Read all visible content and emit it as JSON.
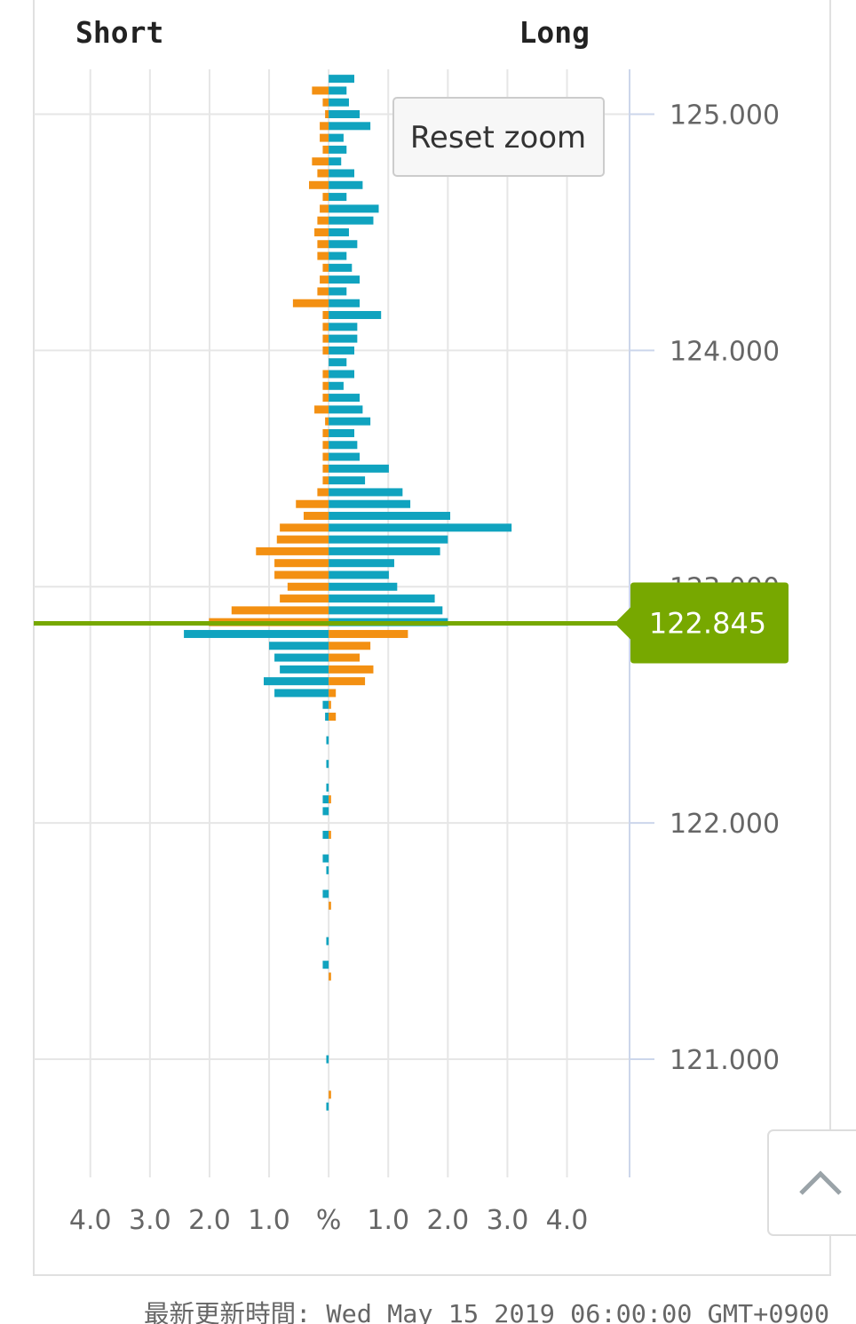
{
  "chart_data": {
    "type": "butterfly_bar",
    "left_title": "Short",
    "right_title": "Long",
    "reset_button": "Reset zoom",
    "current_price": {
      "value": 122.845,
      "label": "122.845"
    },
    "current_price_color": "#77a800",
    "colors_above_current": [
      "#f39012",
      "#10a3bf"
    ],
    "colors_below_current": [
      "#10a3bf",
      "#f39012"
    ],
    "footer": "最新更新時間: Wed May 15 2019 06:00:00 GMT+0900",
    "prices": [
      125.15,
      125.1,
      125.05,
      125.0,
      124.95,
      124.9,
      124.85,
      124.8,
      124.75,
      124.7,
      124.65,
      124.6,
      124.55,
      124.5,
      124.45,
      124.4,
      124.35,
      124.3,
      124.25,
      124.2,
      124.15,
      124.1,
      124.05,
      124.0,
      123.95,
      123.9,
      123.85,
      123.8,
      123.75,
      123.7,
      123.65,
      123.6,
      123.55,
      123.5,
      123.45,
      123.4,
      123.35,
      123.3,
      123.25,
      123.2,
      123.15,
      123.1,
      123.05,
      123.0,
      122.95,
      122.9,
      122.85,
      122.8,
      122.75,
      122.7,
      122.65,
      122.6,
      122.55,
      122.5,
      122.45,
      122.35,
      122.25,
      122.15,
      122.1,
      122.05,
      121.95,
      121.85,
      121.8,
      121.7,
      121.65,
      121.5,
      121.4,
      121.35,
      121.0,
      120.85,
      120.8
    ],
    "series": [
      {
        "name": "Short",
        "side": "left",
        "values": [
          0,
          0.28,
          0.1,
          0.06,
          0.15,
          0.15,
          0.1,
          0.28,
          0.19,
          0.33,
          0.1,
          0.15,
          0.19,
          0.24,
          0.19,
          0.19,
          0.1,
          0.15,
          0.19,
          0.6,
          0.1,
          0.1,
          0.1,
          0.1,
          0,
          0.1,
          0.1,
          0.1,
          0.24,
          0.06,
          0.1,
          0.1,
          0.1,
          0.1,
          0.1,
          0.19,
          0.55,
          0.42,
          0.82,
          0.87,
          1.22,
          0.91,
          0.91,
          0.69,
          0.82,
          1.63,
          2.01,
          2.43,
          1.0,
          0.91,
          0.82,
          1.09,
          0.91,
          0.1,
          0.06,
          0.04,
          0.04,
          0.04,
          0.1,
          0.1,
          0.1,
          0.1,
          0.04,
          0.1,
          0,
          0.04,
          0.1,
          0,
          0.04,
          0,
          0.04
        ]
      },
      {
        "name": "Long",
        "side": "right",
        "values": [
          0.43,
          0.3,
          0.34,
          0.52,
          0.7,
          0.25,
          0.3,
          0.21,
          0.43,
          0.57,
          0.3,
          0.84,
          0.75,
          0.34,
          0.48,
          0.3,
          0.39,
          0.52,
          0.3,
          0.52,
          0.88,
          0.48,
          0.48,
          0.43,
          0.3,
          0.43,
          0.25,
          0.52,
          0.57,
          0.7,
          0.43,
          0.48,
          0.52,
          1.01,
          0.61,
          1.24,
          1.37,
          2.04,
          3.07,
          2.0,
          1.87,
          1.1,
          1.01,
          1.15,
          1.78,
          1.91,
          2.0,
          1.33,
          0.7,
          0.52,
          0.75,
          0.61,
          0.12,
          0.04,
          0.12,
          0,
          0,
          0,
          0.04,
          0,
          0.04,
          0,
          0,
          0,
          0.04,
          0,
          0,
          0.04,
          0,
          0.04,
          0
        ]
      }
    ],
    "xlim": [
      -4.95,
      5.05
    ],
    "xticks": [
      {
        "value": -4,
        "label": "4.0"
      },
      {
        "value": -3,
        "label": "3.0"
      },
      {
        "value": -2,
        "label": "2.0"
      },
      {
        "value": -1,
        "label": "1.0"
      },
      {
        "value": 0,
        "label": "%"
      },
      {
        "value": 1,
        "label": "1.0"
      },
      {
        "value": 2,
        "label": "2.0"
      },
      {
        "value": 3,
        "label": "3.0"
      },
      {
        "value": 4,
        "label": "4.0"
      }
    ],
    "ylim": [
      120.5,
      125.19
    ],
    "yticks": [
      {
        "value": 121,
        "label": "121.000"
      },
      {
        "value": 122,
        "label": "122.000"
      },
      {
        "value": 123,
        "label": "123.000"
      },
      {
        "value": 124,
        "label": "124.000"
      },
      {
        "value": 125,
        "label": "125.000"
      }
    ],
    "grid": true
  }
}
